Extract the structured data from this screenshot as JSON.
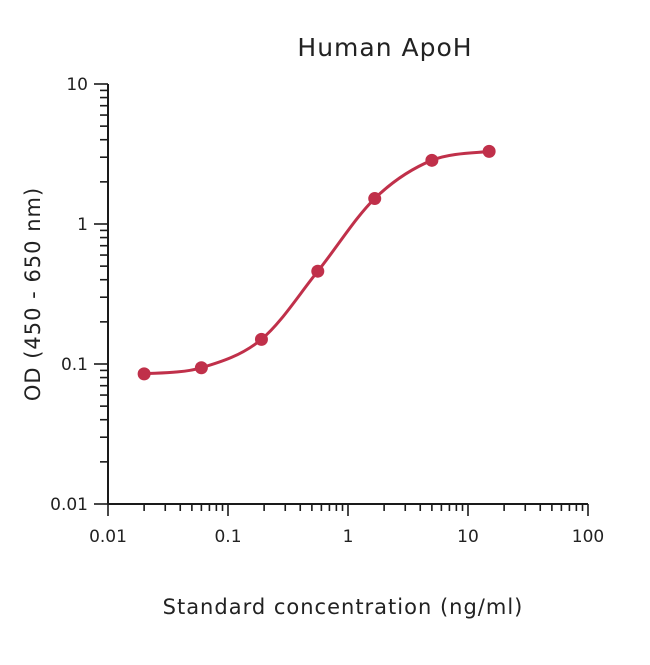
{
  "chart_data": {
    "type": "line",
    "title": "Human ApoH",
    "xlabel": "Standard concentration (ng/ml)",
    "ylabel": "OD (450 - 650 nm)",
    "x_scale": "log",
    "y_scale": "log",
    "xlim": [
      0.01,
      100
    ],
    "ylim": [
      0.01,
      10
    ],
    "x_tick_labels": [
      "0.01",
      "0.1",
      "1",
      "10",
      "100"
    ],
    "y_tick_labels": [
      "0.01",
      "0.1",
      "1",
      "10"
    ],
    "grid": false,
    "series": [
      {
        "color": "#c0304a",
        "x": [
          0.02,
          0.06,
          0.19,
          0.56,
          1.67,
          5,
          15
        ],
        "y": [
          0.085,
          0.094,
          0.15,
          0.46,
          1.52,
          2.85,
          3.3
        ]
      }
    ]
  }
}
